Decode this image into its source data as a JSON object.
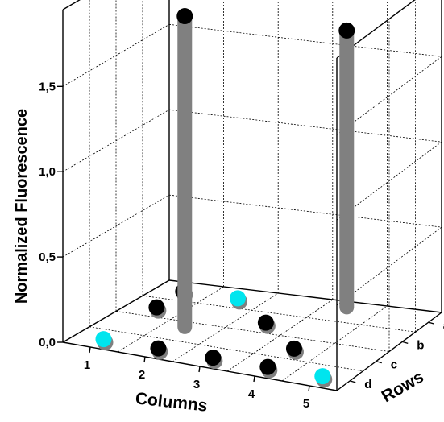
{
  "chart_data": {
    "type": "scatter",
    "plot_style": "3d-stem",
    "ylabel": "Normalized Fluorescence",
    "xlabel": "Columns",
    "zlabel": "Rows",
    "y_ticks": [
      "0,0",
      "0,5",
      "1,0",
      "1,5"
    ],
    "ylim": [
      0,
      1.95
    ],
    "x_ticks": [
      "1",
      "2",
      "3",
      "4",
      "5"
    ],
    "z_ticks": [
      "a",
      "b",
      "c",
      "d"
    ],
    "grid": true,
    "colors": {
      "sample": "#000000",
      "reference": "#00e5ee",
      "stem": "#808080"
    },
    "points": [
      {
        "column": 1,
        "row": "a",
        "value": 0,
        "kind": "sample"
      },
      {
        "column": 1,
        "row": "b",
        "value": 0,
        "kind": "sample"
      },
      {
        "column": 1,
        "row": "d",
        "value": 0,
        "kind": "reference"
      },
      {
        "column": 2,
        "row": "a",
        "value": 0,
        "kind": "reference"
      },
      {
        "column": 2,
        "row": "c",
        "value": 1.85,
        "kind": "sample"
      },
      {
        "column": 2,
        "row": "d",
        "value": 0,
        "kind": "sample"
      },
      {
        "column": 3,
        "row": "b",
        "value": 0,
        "kind": "sample"
      },
      {
        "column": 3,
        "row": "d",
        "value": 0,
        "kind": "sample"
      },
      {
        "column": 4,
        "row": "a",
        "value": 1.65,
        "kind": "sample"
      },
      {
        "column": 4,
        "row": "c",
        "value": 0,
        "kind": "sample"
      },
      {
        "column": 4,
        "row": "d",
        "value": 0,
        "kind": "sample"
      },
      {
        "column": 5,
        "row": "d",
        "value": 0,
        "kind": "reference"
      }
    ]
  }
}
